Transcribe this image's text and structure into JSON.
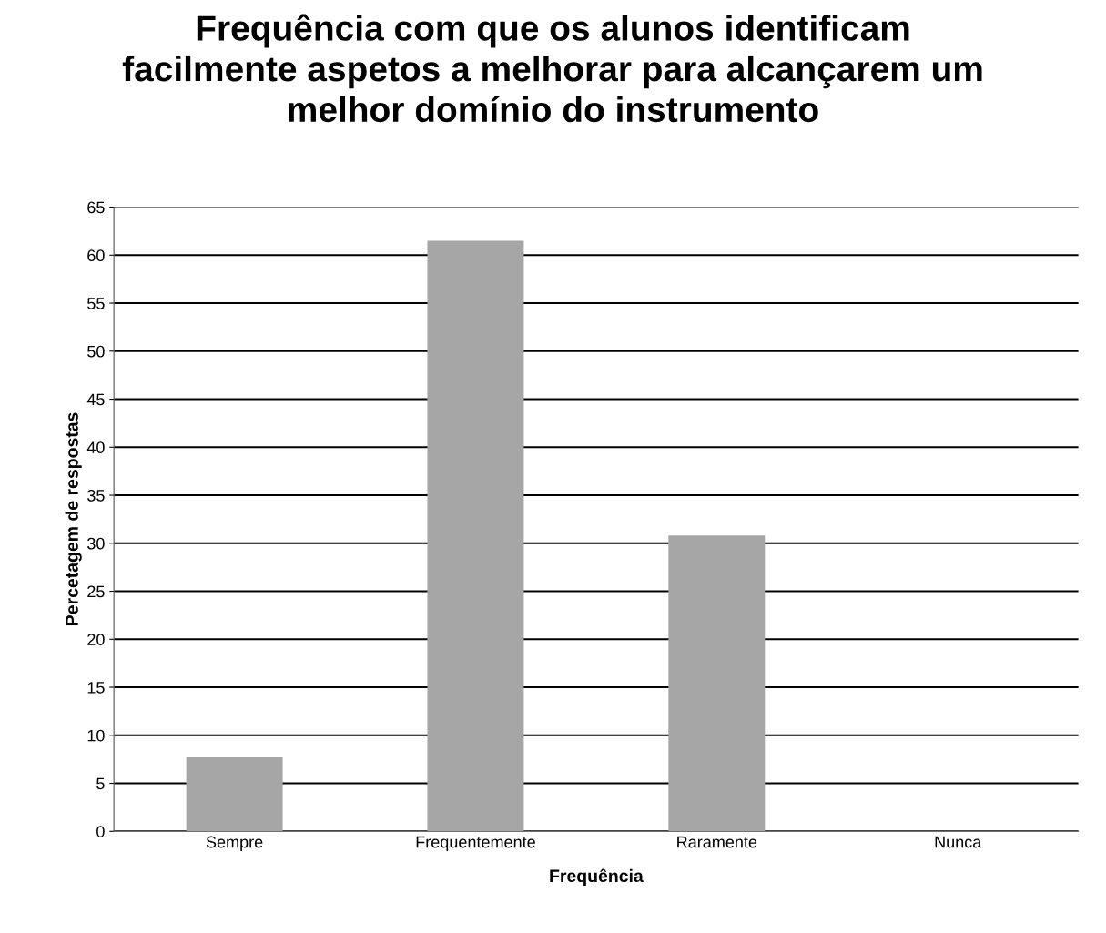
{
  "chart_data": {
    "type": "bar",
    "title": "Frequência com que os alunos identificam\nfacilmente aspetos a melhorar para alcançarem um\nmelhor domínio do instrumento",
    "xlabel": "Frequência",
    "ylabel": "Percetagem de respostas",
    "categories": [
      "Sempre",
      "Frequentemente",
      "Raramente",
      "Nunca"
    ],
    "values": [
      7.7,
      61.5,
      30.8,
      0
    ],
    "color": "#a6a6a6",
    "ylim": [
      0,
      65
    ],
    "yticks": [
      0,
      5,
      10,
      15,
      20,
      25,
      30,
      35,
      40,
      45,
      50,
      55,
      60,
      65
    ],
    "grid": "y",
    "legend": false
  }
}
